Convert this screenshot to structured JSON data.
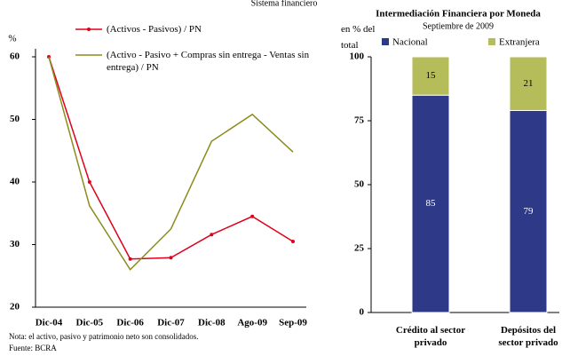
{
  "chart_data": [
    {
      "type": "line",
      "title": "Sistema financiero",
      "y_label": "%",
      "categories": [
        "Dic-04",
        "Dic-05",
        "Dic-06",
        "Dic-07",
        "Dic-08",
        "Ago-09",
        "Sep-09"
      ],
      "series": [
        {
          "name": "(Activos - Pasivos) / PN",
          "color": "#e0001b",
          "values": [
            60,
            40,
            27.7,
            27.9,
            31.6,
            34.5,
            30.5
          ]
        },
        {
          "name": "(Activo - Pasivo + Compras sin entrega - Ventas sin entrega) / PN",
          "color": "#8c8c1c",
          "values": [
            60,
            36.2,
            26,
            32.5,
            46.5,
            50.8,
            44.8
          ]
        }
      ],
      "ylim": [
        20,
        60
      ],
      "yticks": [
        20,
        30,
        40,
        50,
        60
      ],
      "note": "Nota: el activo, pasivo y patrimonio neto son consolidados.",
      "source": "Fuente: BCRA"
    },
    {
      "type": "stacked_bar",
      "title": "Intermediación Financiera por Moneda",
      "subtitle": "Septiembre de 2009",
      "y_label": "en % del\ntotal",
      "categories": [
        "Crédito al sector\nprivado",
        "Depósitos del\nsector privado"
      ],
      "series": [
        {
          "name": "Nacional",
          "color": "#2e3a87",
          "values": [
            85,
            79
          ]
        },
        {
          "name": "Extranjera",
          "color": "#b5bd5a",
          "values": [
            15,
            21
          ]
        }
      ],
      "ylim": [
        0,
        100
      ],
      "yticks": [
        0,
        25,
        50,
        75,
        100
      ]
    }
  ]
}
